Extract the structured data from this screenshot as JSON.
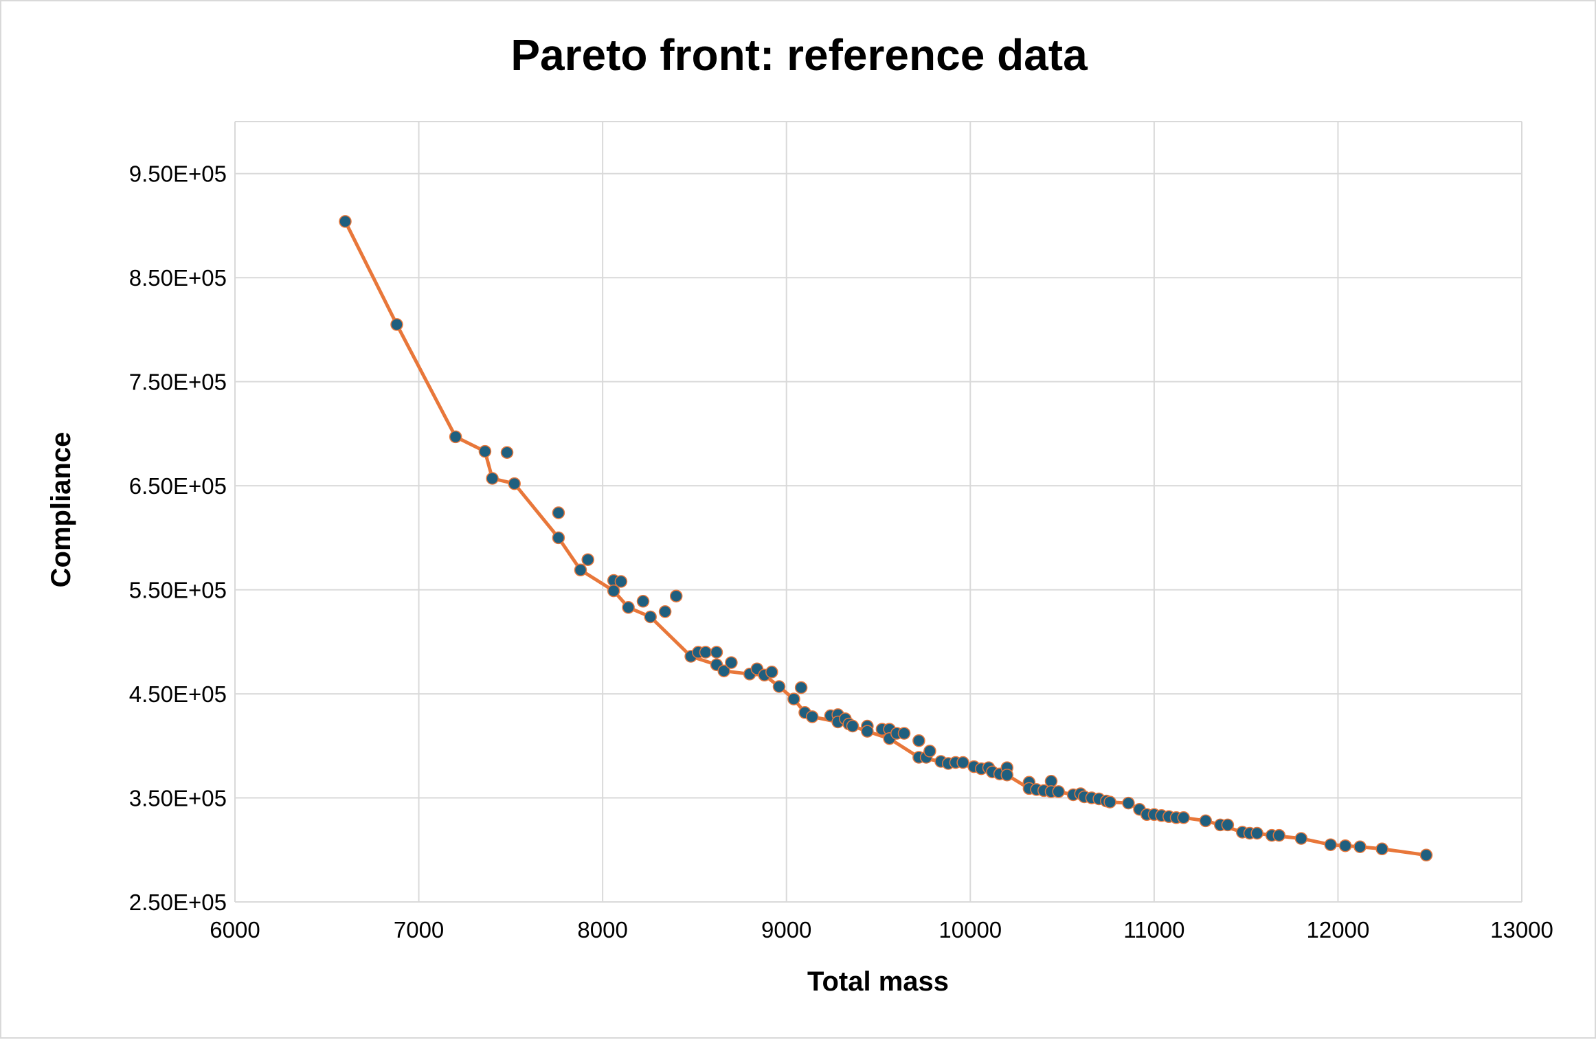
{
  "chart_data": {
    "type": "scatter",
    "title": "Pareto front: reference data",
    "xlabel": "Total mass",
    "ylabel": "Compliance",
    "xlim": [
      6000,
      13000
    ],
    "ylim": [
      250000,
      1000000
    ],
    "x_ticks": [
      6000,
      7000,
      8000,
      9000,
      10000,
      11000,
      12000,
      13000
    ],
    "x_tick_labels": [
      "6000",
      "7000",
      "8000",
      "9000",
      "10000",
      "11000",
      "12000",
      "13000"
    ],
    "y_ticks": [
      250000,
      350000,
      450000,
      550000,
      650000,
      750000,
      850000,
      950000
    ],
    "y_tick_labels": [
      "2.50E+05",
      "3.50E+05",
      "4.50E+05",
      "5.50E+05",
      "6.50E+05",
      "7.50E+05",
      "8.50E+05",
      "9.50E+05"
    ],
    "grid": true,
    "legend": "none",
    "colors": {
      "points": "#1f5f7f",
      "front_line": "#e8773a",
      "grid": "#d9d9d9"
    },
    "series": [
      {
        "kind": "points",
        "points": [
          [
            6600,
            904000
          ],
          [
            6880,
            805000
          ],
          [
            7200,
            697000
          ],
          [
            7360,
            683000
          ],
          [
            7400,
            657000
          ],
          [
            7480,
            682000
          ],
          [
            7520,
            652000
          ],
          [
            7760,
            624000
          ],
          [
            7760,
            600000
          ],
          [
            7880,
            569000
          ],
          [
            7920,
            579000
          ],
          [
            8060,
            559000
          ],
          [
            8060,
            549000
          ],
          [
            8100,
            558000
          ],
          [
            8140,
            533000
          ],
          [
            8220,
            539000
          ],
          [
            8260,
            524000
          ],
          [
            8340,
            529000
          ],
          [
            8400,
            544000
          ],
          [
            8480,
            486000
          ],
          [
            8520,
            490000
          ],
          [
            8560,
            490000
          ],
          [
            8620,
            490000
          ],
          [
            8620,
            478000
          ],
          [
            8660,
            472000
          ],
          [
            8700,
            480000
          ],
          [
            8800,
            469000
          ],
          [
            8840,
            474000
          ],
          [
            8880,
            468000
          ],
          [
            8920,
            471000
          ],
          [
            8960,
            457000
          ],
          [
            9040,
            445000
          ],
          [
            9080,
            456000
          ],
          [
            9100,
            432000
          ],
          [
            9140,
            428000
          ],
          [
            9240,
            429000
          ],
          [
            9280,
            430000
          ],
          [
            9280,
            423000
          ],
          [
            9320,
            426000
          ],
          [
            9340,
            421000
          ],
          [
            9360,
            419000
          ],
          [
            9440,
            419000
          ],
          [
            9440,
            414000
          ],
          [
            9520,
            416000
          ],
          [
            9560,
            416000
          ],
          [
            9560,
            407000
          ],
          [
            9600,
            412000
          ],
          [
            9640,
            412000
          ],
          [
            9720,
            405000
          ],
          [
            9720,
            389000
          ],
          [
            9760,
            389000
          ],
          [
            9780,
            395000
          ],
          [
            9840,
            385000
          ],
          [
            9880,
            383000
          ],
          [
            9920,
            384000
          ],
          [
            9960,
            384000
          ],
          [
            10020,
            380000
          ],
          [
            10060,
            378000
          ],
          [
            10100,
            379000
          ],
          [
            10120,
            375000
          ],
          [
            10160,
            373000
          ],
          [
            10200,
            379000
          ],
          [
            10200,
            372000
          ],
          [
            10320,
            365000
          ],
          [
            10320,
            359000
          ],
          [
            10360,
            358000
          ],
          [
            10400,
            357000
          ],
          [
            10440,
            366000
          ],
          [
            10440,
            356000
          ],
          [
            10480,
            356000
          ],
          [
            10560,
            353000
          ],
          [
            10600,
            354000
          ],
          [
            10620,
            351000
          ],
          [
            10660,
            350000
          ],
          [
            10700,
            349000
          ],
          [
            10740,
            347000
          ],
          [
            10760,
            346000
          ],
          [
            10860,
            345000
          ],
          [
            10920,
            339000
          ],
          [
            10960,
            334000
          ],
          [
            11000,
            334000
          ],
          [
            11040,
            333000
          ],
          [
            11080,
            332000
          ],
          [
            11120,
            331000
          ],
          [
            11160,
            331000
          ],
          [
            11280,
            328000
          ],
          [
            11360,
            324000
          ],
          [
            11400,
            324000
          ],
          [
            11480,
            317000
          ],
          [
            11520,
            316000
          ],
          [
            11560,
            316000
          ],
          [
            11640,
            314000
          ],
          [
            11680,
            314000
          ],
          [
            11800,
            311000
          ],
          [
            11960,
            305000
          ],
          [
            12040,
            304000
          ],
          [
            12120,
            303000
          ],
          [
            12240,
            301000
          ],
          [
            12480,
            295000
          ]
        ]
      },
      {
        "kind": "line",
        "points": [
          [
            6600,
            904000
          ],
          [
            6880,
            805000
          ],
          [
            7200,
            697000
          ],
          [
            7360,
            683000
          ],
          [
            7400,
            657000
          ],
          [
            7520,
            652000
          ],
          [
            7760,
            600000
          ],
          [
            7880,
            569000
          ],
          [
            8060,
            549000
          ],
          [
            8140,
            533000
          ],
          [
            8260,
            524000
          ],
          [
            8480,
            486000
          ],
          [
            8620,
            478000
          ],
          [
            8660,
            472000
          ],
          [
            8800,
            469000
          ],
          [
            8880,
            468000
          ],
          [
            8960,
            457000
          ],
          [
            9040,
            445000
          ],
          [
            9100,
            432000
          ],
          [
            9140,
            428000
          ],
          [
            9280,
            423000
          ],
          [
            9360,
            419000
          ],
          [
            9440,
            414000
          ],
          [
            9560,
            407000
          ],
          [
            9720,
            389000
          ],
          [
            9840,
            385000
          ],
          [
            9880,
            383000
          ],
          [
            10020,
            380000
          ],
          [
            10060,
            378000
          ],
          [
            10120,
            375000
          ],
          [
            10200,
            372000
          ],
          [
            10320,
            359000
          ],
          [
            10360,
            358000
          ],
          [
            10400,
            357000
          ],
          [
            10480,
            356000
          ],
          [
            10560,
            353000
          ],
          [
            10620,
            351000
          ],
          [
            10660,
            350000
          ],
          [
            10700,
            349000
          ],
          [
            10740,
            347000
          ],
          [
            10760,
            346000
          ],
          [
            10860,
            345000
          ],
          [
            10920,
            339000
          ],
          [
            10960,
            334000
          ],
          [
            11040,
            333000
          ],
          [
            11080,
            332000
          ],
          [
            11160,
            331000
          ],
          [
            11280,
            328000
          ],
          [
            11360,
            324000
          ],
          [
            11480,
            317000
          ],
          [
            11560,
            316000
          ],
          [
            11640,
            314000
          ],
          [
            11800,
            311000
          ],
          [
            11960,
            305000
          ],
          [
            12040,
            304000
          ],
          [
            12120,
            303000
          ],
          [
            12240,
            301000
          ],
          [
            12480,
            295000
          ]
        ]
      }
    ]
  }
}
